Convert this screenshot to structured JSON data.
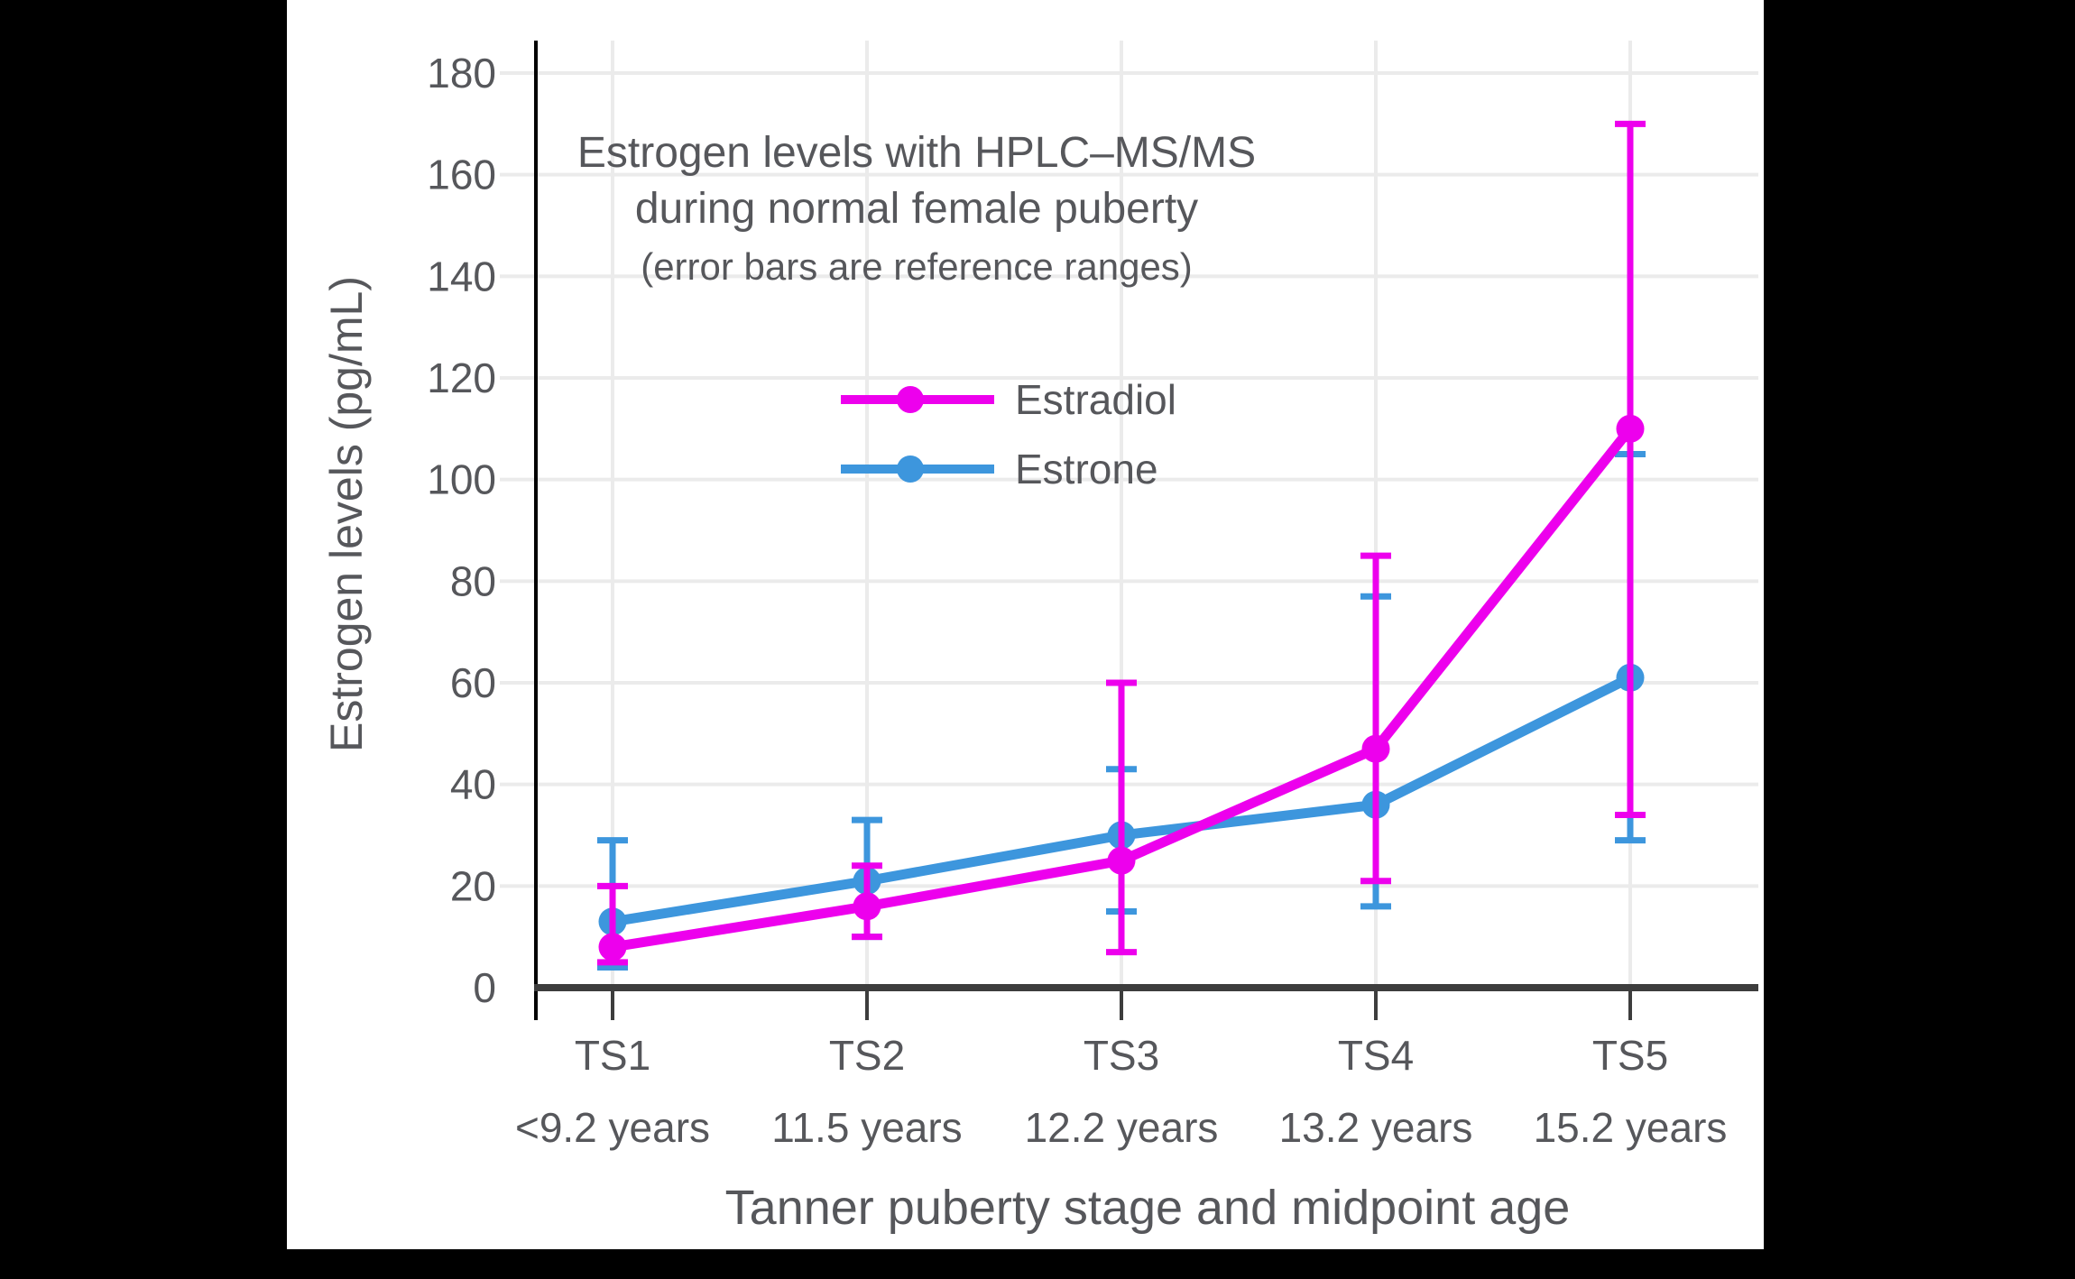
{
  "page": {
    "background": "#000000",
    "card_background": "#FFFFFF"
  },
  "styles": {
    "text_color": "#56575B",
    "grid_color": "#EBEBEB",
    "axis_color": "#3D3D3D",
    "spine_color": "#000000"
  },
  "chart_data": {
    "type": "line",
    "title_line1": "Estrogen levels with HPLC–MS/MS",
    "title_line2": "during normal female puberty",
    "subtitle": "(error bars are reference ranges)",
    "xlabel": "Tanner puberty stage and midpoint age",
    "ylabel": "Estrogen levels (pg/mL)",
    "categories": [
      "TS1",
      "TS2",
      "TS3",
      "TS4",
      "TS5"
    ],
    "category_ages": [
      "<9.2 years",
      "11.5 years",
      "12.2 years",
      "13.2 years",
      "15.2 years"
    ],
    "yticks": [
      0,
      20,
      40,
      60,
      80,
      100,
      120,
      140,
      160,
      180
    ],
    "ylim": [
      0,
      187
    ],
    "grid": true,
    "legend_position": "upper-left-of-center",
    "error_bars": "reference ranges",
    "series": [
      {
        "name": "Estradiol",
        "color": "#ED00ED",
        "values": [
          8,
          16,
          25,
          47,
          110
        ],
        "range_low": [
          5,
          10,
          7,
          21,
          34
        ],
        "range_high": [
          20,
          24,
          60,
          85,
          170
        ]
      },
      {
        "name": "Estrone",
        "color": "#3D96DD",
        "values": [
          13,
          21,
          30,
          36,
          61
        ],
        "range_low": [
          4,
          10,
          15,
          16,
          29
        ],
        "range_high": [
          29,
          33,
          43,
          77,
          105
        ]
      }
    ]
  }
}
